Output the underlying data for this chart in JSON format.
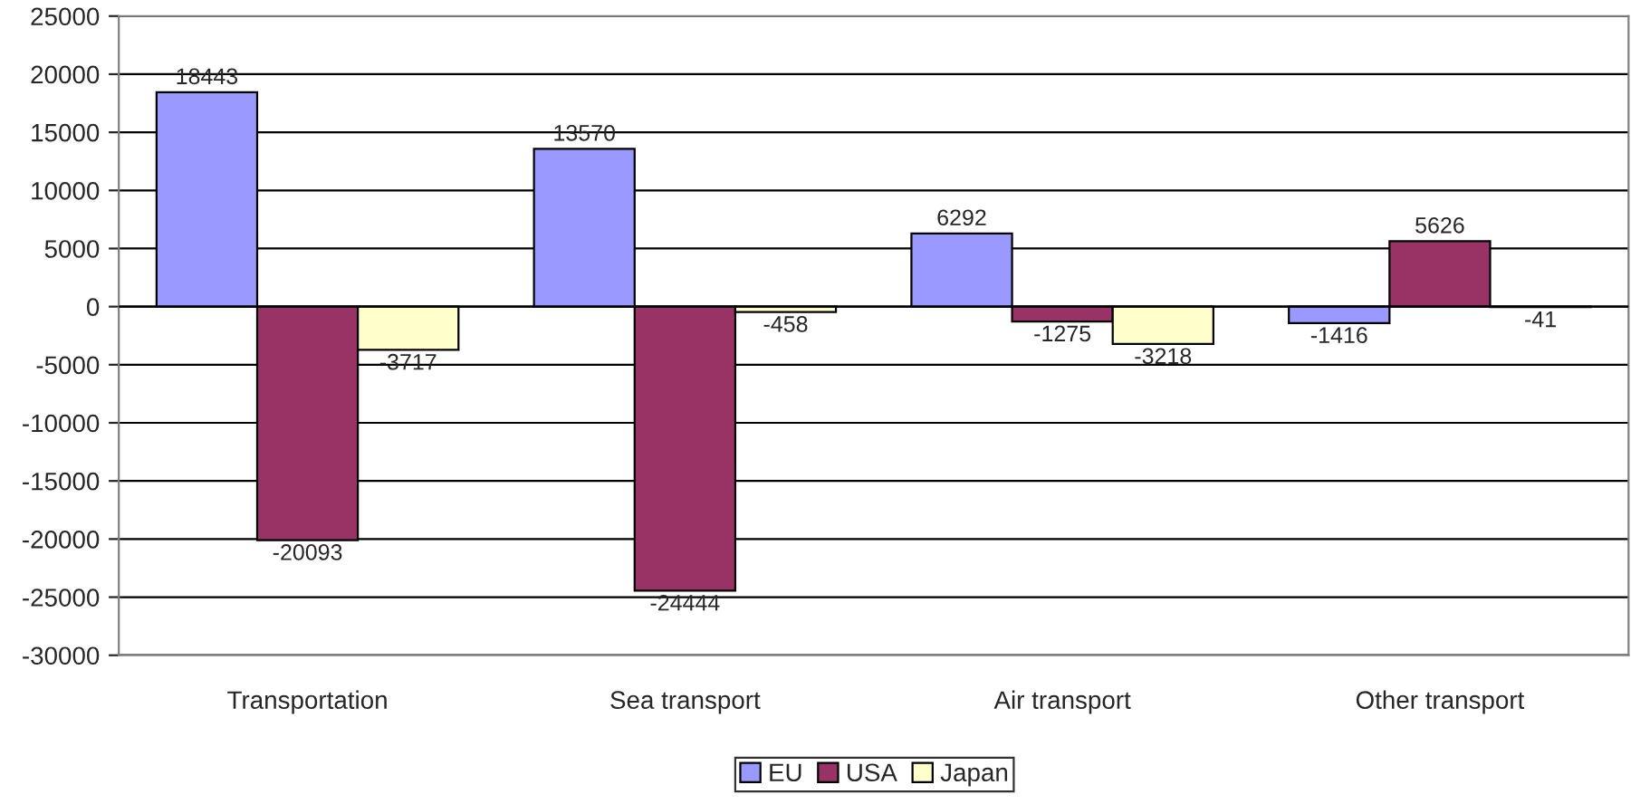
{
  "chart_data": {
    "type": "bar",
    "categories": [
      "Transportation",
      "Sea transport",
      "Air transport",
      "Other transport"
    ],
    "series": [
      {
        "name": "EU",
        "color": "#9999ff",
        "values": [
          18443,
          13570,
          6292,
          -1416
        ]
      },
      {
        "name": "USA",
        "color": "#993366",
        "values": [
          -20093,
          -24444,
          -1275,
          5626
        ]
      },
      {
        "name": "Japan",
        "color": "#ffffcc",
        "values": [
          -3717,
          -458,
          -3218,
          -41
        ]
      }
    ],
    "ylim": [
      -30000,
      25000
    ],
    "yticks": [
      -30000,
      -25000,
      -20000,
      -15000,
      -10000,
      -5000,
      0,
      5000,
      10000,
      15000,
      20000,
      25000
    ],
    "grid": "y",
    "legend": "bottom",
    "data_labels": true
  }
}
